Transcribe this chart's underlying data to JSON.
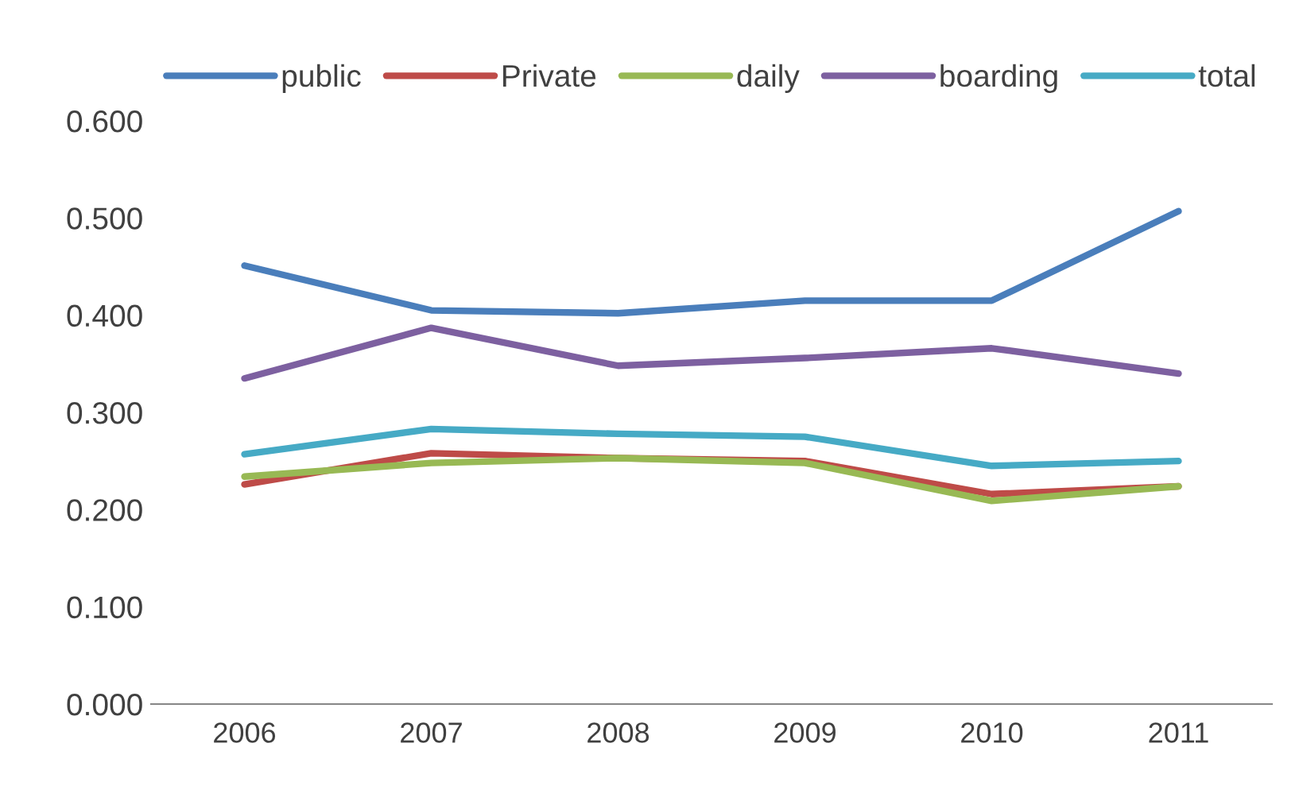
{
  "chart_data": {
    "type": "line",
    "categories": [
      "2006",
      "2007",
      "2008",
      "2009",
      "2010",
      "2011"
    ],
    "series": [
      {
        "name": "public",
        "color": "#4a7ebb",
        "values": [
          0.451,
          0.405,
          0.402,
          0.415,
          0.415,
          0.507
        ]
      },
      {
        "name": "Private",
        "color": "#be4b48",
        "values": [
          0.226,
          0.258,
          0.253,
          0.25,
          0.216,
          0.224
        ]
      },
      {
        "name": "daily",
        "color": "#98b954",
        "values": [
          0.234,
          0.248,
          0.253,
          0.248,
          0.209,
          0.224
        ]
      },
      {
        "name": "boarding",
        "color": "#7d60a0",
        "values": [
          0.335,
          0.387,
          0.348,
          0.356,
          0.366,
          0.34
        ]
      },
      {
        "name": "total",
        "color": "#46aac5",
        "values": [
          0.257,
          0.283,
          0.278,
          0.275,
          0.245,
          0.25
        ]
      }
    ],
    "ylim": [
      0,
      0.6
    ],
    "yticks": [
      {
        "value": 0,
        "label": "0.000"
      },
      {
        "value": 0.1,
        "label": "0.100"
      },
      {
        "value": 0.2,
        "label": "0.200"
      },
      {
        "value": 0.3,
        "label": "0.300"
      },
      {
        "value": 0.4,
        "label": "0.400"
      },
      {
        "value": 0.5,
        "label": "0.500"
      },
      {
        "value": 0.6,
        "label": "0.600"
      }
    ],
    "grid": false,
    "legend": "top",
    "marker": "none",
    "line_style": "solid"
  }
}
